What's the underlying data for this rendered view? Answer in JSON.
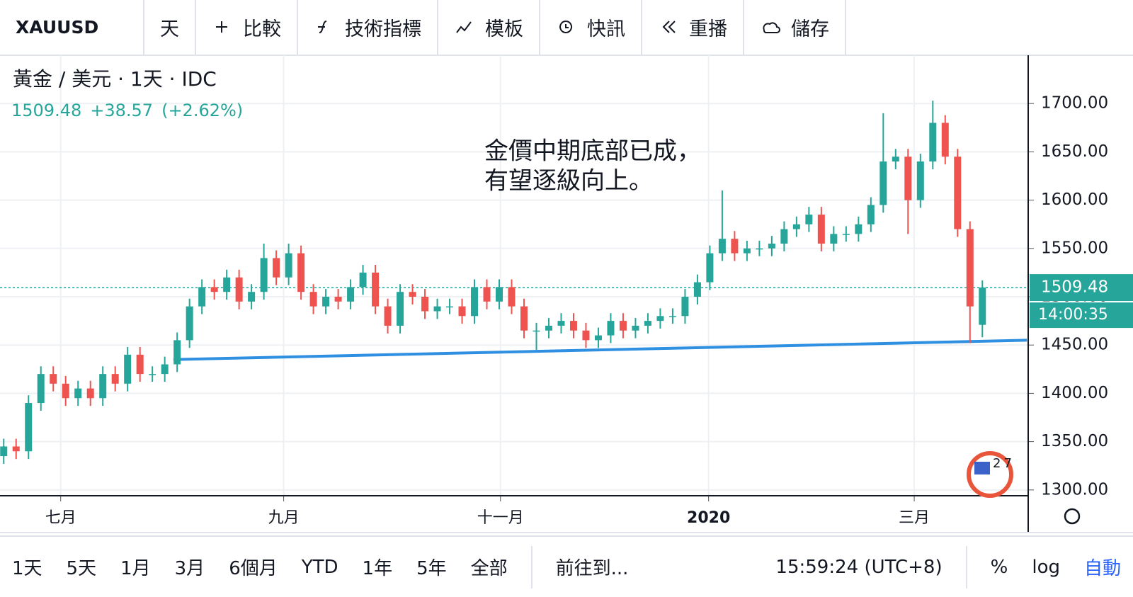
{
  "toolbar": {
    "symbol": "XAUUSD",
    "items": [
      "天",
      "比較",
      "技術指標",
      "模板",
      "快訊",
      "重播",
      "儲存"
    ]
  },
  "chart_data": {
    "type": "candlestick",
    "header": {
      "title": "黃金 / 美元 · 1天 · IDC",
      "last": "1509.48",
      "change": "+38.57",
      "change_pct": "(+2.62%)"
    },
    "annotation": [
      "金價中期底部已成，",
      "有望逐級向上。"
    ],
    "logo_text": "27",
    "up_color": "#26a69a",
    "down_color": "#ef5350",
    "open": [
      1335,
      1345,
      1340,
      1390,
      1420,
      1410,
      1395,
      1405,
      1395,
      1420,
      1410,
      1440,
      1420,
      1420,
      1430,
      1455,
      1490,
      1510,
      1505,
      1520,
      1495,
      1505,
      1540,
      1520,
      1545,
      1505,
      1490,
      1500,
      1495,
      1510,
      1525,
      1490,
      1470,
      1505,
      1500,
      1485,
      1490,
      1490,
      1480,
      1510,
      1495,
      1510,
      1490,
      1465,
      1465,
      1470,
      1475,
      1465,
      1455,
      1460,
      1475,
      1465,
      1470,
      1475,
      1480,
      1480,
      1500,
      1515,
      1545,
      1560,
      1545,
      1550,
      1550,
      1555,
      1570,
      1575,
      1585,
      1555,
      1565,
      1565,
      1575,
      1595,
      1640,
      1645,
      1600,
      1640,
      1680,
      1645,
      1570,
      1470.91
    ],
    "high": [
      1353,
      1353,
      1398,
      1428,
      1428,
      1418,
      1413,
      1413,
      1428,
      1428,
      1448,
      1448,
      1428,
      1438,
      1463,
      1498,
      1518,
      1518,
      1528,
      1528,
      1513,
      1555,
      1548,
      1555,
      1553,
      1513,
      1508,
      1508,
      1518,
      1533,
      1533,
      1498,
      1513,
      1513,
      1508,
      1498,
      1498,
      1498,
      1518,
      1518,
      1518,
      1518,
      1498,
      1473,
      1478,
      1483,
      1483,
      1473,
      1468,
      1483,
      1483,
      1478,
      1483,
      1488,
      1488,
      1508,
      1523,
      1553,
      1610,
      1568,
      1558,
      1558,
      1563,
      1578,
      1583,
      1593,
      1593,
      1573,
      1573,
      1583,
      1603,
      1690,
      1653,
      1653,
      1648,
      1703,
      1688,
      1653,
      1578,
      1517
    ],
    "low": [
      1327,
      1332,
      1332,
      1382,
      1402,
      1387,
      1387,
      1387,
      1387,
      1402,
      1402,
      1412,
      1412,
      1412,
      1422,
      1447,
      1482,
      1497,
      1497,
      1487,
      1487,
      1497,
      1512,
      1512,
      1497,
      1482,
      1482,
      1487,
      1487,
      1502,
      1482,
      1462,
      1462,
      1492,
      1477,
      1477,
      1482,
      1472,
      1472,
      1487,
      1487,
      1482,
      1457,
      1445,
      1457,
      1462,
      1457,
      1447,
      1447,
      1452,
      1457,
      1457,
      1462,
      1467,
      1472,
      1472,
      1492,
      1507,
      1537,
      1537,
      1537,
      1542,
      1542,
      1547,
      1562,
      1567,
      1547,
      1547,
      1557,
      1557,
      1567,
      1587,
      1632,
      1565,
      1592,
      1632,
      1637,
      1562,
      1452,
      1458
    ],
    "close": [
      1345,
      1340,
      1390,
      1420,
      1410,
      1395,
      1405,
      1395,
      1420,
      1410,
      1440,
      1420,
      1420,
      1430,
      1455,
      1490,
      1510,
      1505,
      1520,
      1495,
      1505,
      1540,
      1520,
      1545,
      1505,
      1490,
      1500,
      1495,
      1510,
      1525,
      1490,
      1470,
      1505,
      1500,
      1485,
      1490,
      1490,
      1480,
      1510,
      1495,
      1510,
      1490,
      1465,
      1465,
      1470,
      1475,
      1465,
      1455,
      1460,
      1475,
      1465,
      1470,
      1475,
      1480,
      1480,
      1500,
      1515,
      1545,
      1560,
      1545,
      1550,
      1550,
      1555,
      1570,
      1575,
      1585,
      1555,
      1565,
      1565,
      1575,
      1595,
      1640,
      1645,
      1600,
      1640,
      1680,
      1645,
      1570,
      1490,
      1509.48
    ],
    "xlim": [
      -0.3,
      82.7
    ],
    "xticks": [
      {
        "value": 4.6,
        "label": "七月"
      },
      {
        "value": 22.6,
        "label": "九月"
      },
      {
        "value": 40.1,
        "label": "十一月"
      },
      {
        "value": 56.9,
        "label": "2020"
      },
      {
        "value": 73.5,
        "label": "三月"
      }
    ],
    "ylim": [
      1294,
      1750
    ],
    "yticks": [
      {
        "value": 1300,
        "label": "1300.00"
      },
      {
        "value": 1350,
        "label": "1350.00"
      },
      {
        "value": 1400,
        "label": "1400.00"
      },
      {
        "value": 1450,
        "label": "1450.00"
      },
      {
        "value": 1500,
        "label": "1500.00"
      },
      {
        "value": 1550,
        "label": "1550.00"
      },
      {
        "value": 1600,
        "label": "1600.00"
      },
      {
        "value": 1650,
        "label": "1650.00"
      },
      {
        "value": 1700,
        "label": "1700.00"
      }
    ],
    "price_line": {
      "value": 1509.48,
      "label": "1509.48",
      "countdown": "14:00:35",
      "color": "#26a69a"
    },
    "trendline": {
      "x": [
        13.7,
        82.6
      ],
      "y": [
        1435,
        1455
      ],
      "color": "#2f8fe0"
    },
    "grid": true
  },
  "bottom_bar": {
    "ranges": [
      "1天",
      "5天",
      "1月",
      "3月",
      "6個月",
      "YTD",
      "1年",
      "5年",
      "全部"
    ],
    "goto": "前往到...",
    "time": "15:59:24 (UTC+8)",
    "percent": "%",
    "log": "log",
    "auto": "自動"
  }
}
